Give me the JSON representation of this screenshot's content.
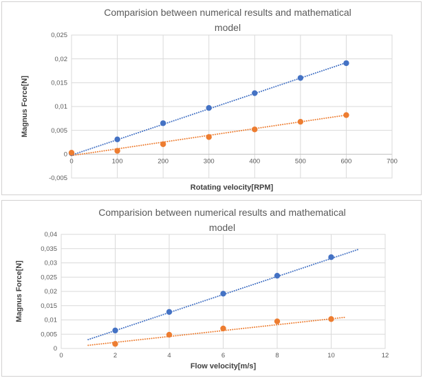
{
  "window": {
    "background": "#ffffff",
    "panel_border": "#d2d0d0"
  },
  "colors": {
    "series_blue": "#4472C4",
    "series_orange": "#ED7D31",
    "gridline": "#D9D9D9",
    "zero_axis": "#BFBFBF",
    "plot_border": "#D9D9D9",
    "text": "#595959",
    "axis_title_text": "#3F3F3F"
  },
  "chart_data": [
    {
      "type": "scatter",
      "title": "Comparision between numerical results and mathematical model",
      "title_lines": [
        "Comparision between numerical results and mathematical",
        "model"
      ],
      "xlabel": "Rotating velocity[RPM]",
      "ylabel": "Magnus Force[N]",
      "xlim": [
        0,
        700
      ],
      "ylim": [
        -0.005,
        0.025
      ],
      "grid": true,
      "legend": "none",
      "decimal_separator": ",",
      "x_tick_values": [
        0,
        100,
        200,
        300,
        400,
        500,
        600,
        700
      ],
      "x_tick_labels": [
        "0",
        "100",
        "200",
        "300",
        "400",
        "500",
        "600",
        "700"
      ],
      "y_tick_values": [
        -0.005,
        0,
        0.005,
        0.01,
        0.015,
        0.02,
        0.025
      ],
      "y_tick_labels": [
        "-0,005",
        "0",
        "0,005",
        "0,01",
        "0,015",
        "0,02",
        "0,025"
      ],
      "series": [
        {
          "name": "blue-series",
          "color": "#4472C4",
          "marker": "circle",
          "x": [
            0,
            100,
            200,
            300,
            400,
            500,
            600
          ],
          "y": [
            0.0002,
            0.0031,
            0.0065,
            0.0097,
            0.0128,
            0.016,
            0.0191
          ],
          "trendline": {
            "style": "dotted",
            "x1": 0,
            "y1": -0.0002,
            "x2": 600,
            "y2": 0.0192
          }
        },
        {
          "name": "orange-series",
          "color": "#ED7D31",
          "marker": "circle",
          "x": [
            0,
            100,
            200,
            300,
            400,
            500,
            600
          ],
          "y": [
            0.0003,
            0.0007,
            0.0021,
            0.0036,
            0.0052,
            0.0068,
            0.0082
          ],
          "trendline": {
            "style": "dotted",
            "x1": 0,
            "y1": -0.0003,
            "x2": 600,
            "y2": 0.0082
          }
        }
      ]
    },
    {
      "type": "scatter",
      "title": "Comparision between numerical results and mathematical model",
      "title_lines": [
        "Comparision between numerical results and mathematical",
        "model"
      ],
      "xlabel": "Flow velocity[m/s]",
      "ylabel": "Magnus Force[N]",
      "xlim": [
        0,
        12
      ],
      "ylim": [
        0,
        0.04
      ],
      "grid": true,
      "legend": "none",
      "decimal_separator": ",",
      "x_tick_values": [
        0,
        2,
        4,
        6,
        8,
        10,
        12
      ],
      "x_tick_labels": [
        "0",
        "2",
        "4",
        "6",
        "8",
        "10",
        "12"
      ],
      "y_tick_values": [
        0,
        0.005,
        0.01,
        0.015,
        0.02,
        0.025,
        0.03,
        0.035,
        0.04
      ],
      "y_tick_labels": [
        "0",
        "0,005",
        "0,01",
        "0,015",
        "0,02",
        "0,025",
        "0,03",
        "0,035",
        "0,04"
      ],
      "series": [
        {
          "name": "blue-series",
          "color": "#4472C4",
          "marker": "circle",
          "x": [
            2,
            4,
            6,
            8,
            10
          ],
          "y": [
            0.0063,
            0.0128,
            0.0192,
            0.0255,
            0.032
          ],
          "trendline": {
            "style": "dotted",
            "x1": 1,
            "y1": 0.0031,
            "x2": 11,
            "y2": 0.0347
          }
        },
        {
          "name": "orange-series",
          "color": "#ED7D31",
          "marker": "circle",
          "x": [
            2,
            4,
            6,
            8,
            10
          ],
          "y": [
            0.0016,
            0.0048,
            0.007,
            0.0095,
            0.0103
          ],
          "trendline": {
            "style": "dotted",
            "x1": 1,
            "y1": 0.0011,
            "x2": 10.5,
            "y2": 0.0109
          }
        }
      ]
    }
  ]
}
